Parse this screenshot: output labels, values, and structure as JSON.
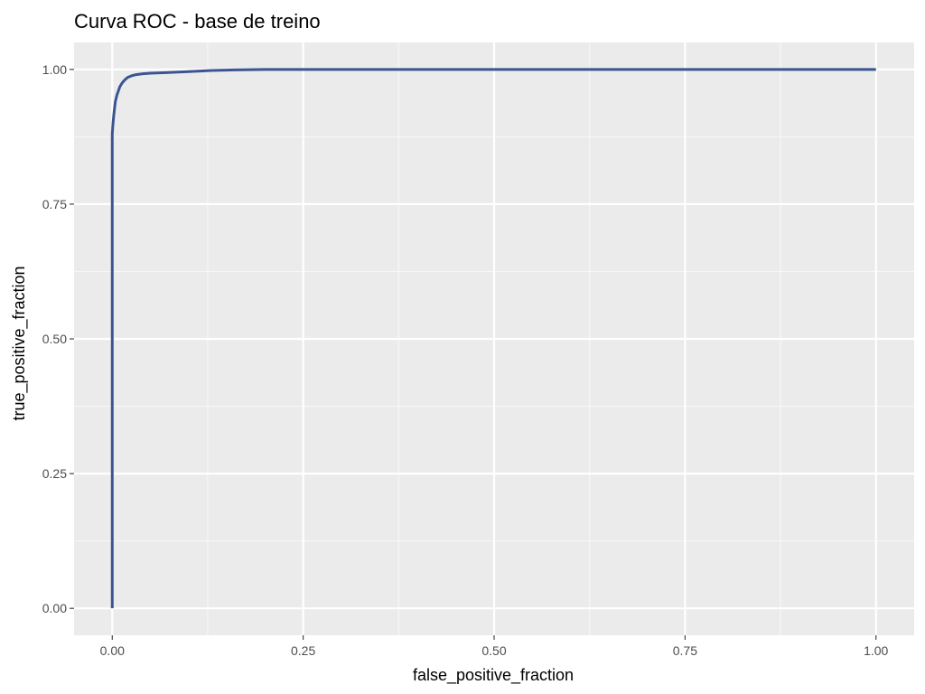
{
  "chart_data": {
    "type": "line",
    "title": "Curva ROC - base de treino",
    "xlabel": "false_positive_fraction",
    "ylabel": "true_positive_fraction",
    "xlim": [
      -0.05,
      1.05
    ],
    "ylim": [
      -0.05,
      1.05
    ],
    "x_ticks": [
      0,
      0.25,
      0.5,
      0.75,
      1
    ],
    "x_tick_labels": [
      "0.00",
      "0.25",
      "0.50",
      "0.75",
      "1.00"
    ],
    "y_ticks": [
      0,
      0.25,
      0.5,
      0.75,
      1
    ],
    "y_tick_labels": [
      "0.00",
      "0.25",
      "0.50",
      "0.75",
      "1.00"
    ],
    "grid": true,
    "series": [
      {
        "color": "#3a5592",
        "x": [
          0,
          0,
          0,
          0.001,
          0.002,
          0.003,
          0.004,
          0.006,
          0.008,
          0.01,
          0.013,
          0.016,
          0.02,
          0.025,
          0.03,
          0.04,
          0.05,
          0.07,
          0.1,
          0.13,
          0.16,
          0.2,
          0.3,
          0.5,
          0.75,
          1
        ],
        "y": [
          0,
          0.5,
          0.88,
          0.9,
          0.915,
          0.928,
          0.94,
          0.952,
          0.96,
          0.968,
          0.975,
          0.98,
          0.985,
          0.988,
          0.99,
          0.992,
          0.993,
          0.994,
          0.996,
          0.998,
          0.999,
          1.0,
          1.0,
          1.0,
          1.0,
          1.0
        ]
      }
    ],
    "colors": {
      "panel_background": "#ebebeb",
      "grid_major": "#ffffff",
      "grid_minor": "#f7f7f7",
      "line": "#3a5592"
    }
  }
}
